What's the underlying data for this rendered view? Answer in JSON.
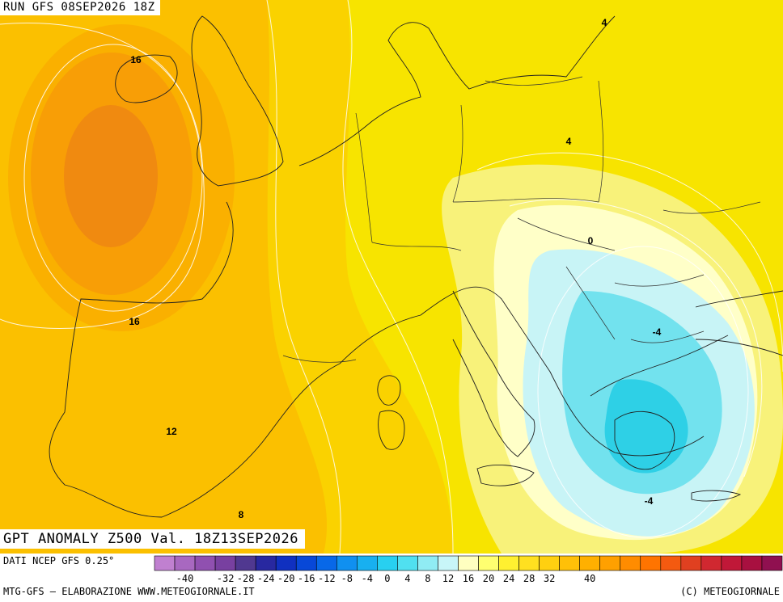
{
  "header": {
    "run_label": "RUN GFS 08SEP2026 18Z"
  },
  "map": {
    "title": "GPT ANOMALY Z500 Val. 18Z13SEP2026",
    "contour_labels": [
      {
        "text": "16"
      },
      {
        "text": "16"
      },
      {
        "text": "12"
      },
      {
        "text": "8"
      },
      {
        "text": "4"
      },
      {
        "text": "4"
      },
      {
        "text": "0"
      },
      {
        "text": "-4"
      },
      {
        "text": "-4"
      }
    ]
  },
  "footer": {
    "data_source": "DATI NCEP GFS 0.25°",
    "credit": "MTG-GFS — ELABORAZIONE WWW.METEOGIORNALE.IT",
    "copyright": "(C) METEOGIORNALE"
  },
  "color_scale": {
    "colors": [
      "#c080d0",
      "#a868c0",
      "#9050b0",
      "#7840a0",
      "#503890",
      "#2828a0",
      "#1030c0",
      "#0848d8",
      "#0868e8",
      "#1090f0",
      "#18b0f0",
      "#28d0f0",
      "#50e0f0",
      "#90ecf4",
      "#c8f6f8",
      "#ffffc0",
      "#ffff70",
      "#fff030",
      "#ffe020",
      "#ffd010",
      "#ffc008",
      "#ffb000",
      "#ffa000",
      "#ff8c00",
      "#ff7400",
      "#f45a10",
      "#e04020",
      "#d02830",
      "#c01838",
      "#a81040",
      "#901050"
    ],
    "tick_labels": [
      "-40",
      "-32",
      "-28",
      "-24",
      "-20",
      "-16",
      "-12",
      "-8",
      "-4",
      "0",
      "4",
      "8",
      "12",
      "16",
      "20",
      "24",
      "28",
      "32",
      "40"
    ]
  }
}
